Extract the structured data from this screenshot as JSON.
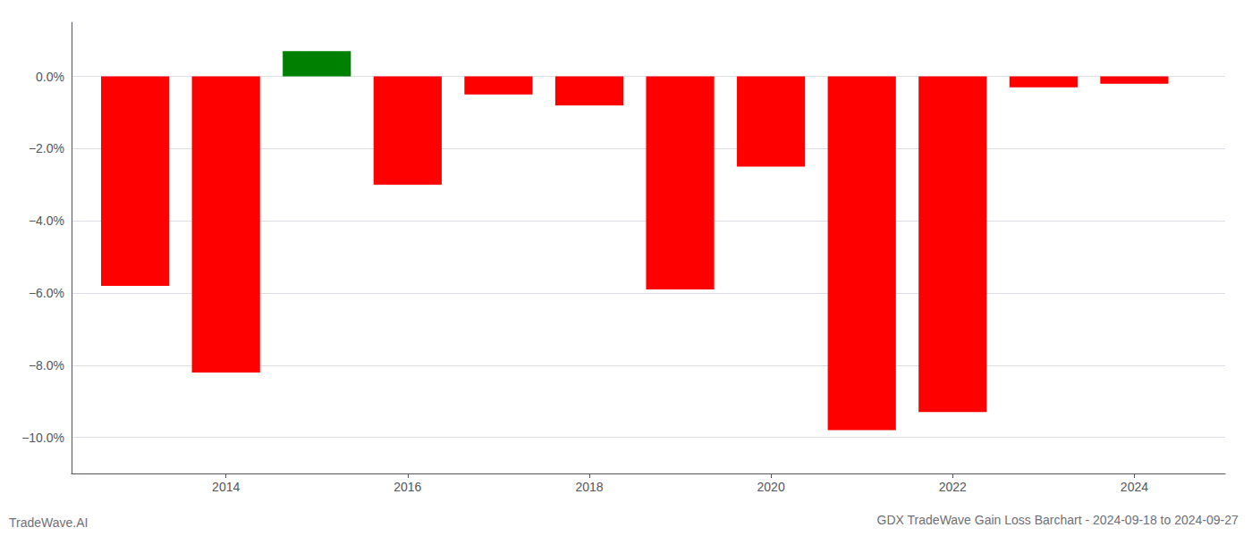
{
  "chart_data": {
    "type": "bar",
    "title": "GDX TradeWave Gain Loss Barchart - 2024-09-18 to 2024-09-27",
    "annotations": [
      "TradeWave.AI"
    ],
    "x": [
      2013,
      2014,
      2015,
      2016,
      2017,
      2018,
      2019,
      2020,
      2021,
      2022,
      2023,
      2024
    ],
    "values": [
      -5.8,
      -8.2,
      0.7,
      -3.0,
      -0.5,
      -0.8,
      -5.9,
      -2.5,
      -9.8,
      -9.3,
      -0.3,
      -0.2
    ],
    "colors": [
      "#ff0000",
      "#ff0000",
      "#008000",
      "#ff0000",
      "#ff0000",
      "#ff0000",
      "#ff0000",
      "#ff0000",
      "#ff0000",
      "#ff0000",
      "#ff0000",
      "#ff0000"
    ],
    "xlim": [
      2012.3,
      2025.0
    ],
    "xticks": [
      2014,
      2016,
      2018,
      2020,
      2022,
      2024
    ],
    "ylim": [
      -11.0,
      1.5
    ],
    "yticks": [
      {
        "value": 0.0,
        "label": "0.0%"
      },
      {
        "value": -2.0,
        "label": "−2.0%"
      },
      {
        "value": -4.0,
        "label": "−4.0%"
      },
      {
        "value": -6.0,
        "label": "−6.0%"
      },
      {
        "value": -8.0,
        "label": "−8.0%"
      },
      {
        "value": -10.0,
        "label": "−10.0%"
      }
    ],
    "grid": true
  }
}
